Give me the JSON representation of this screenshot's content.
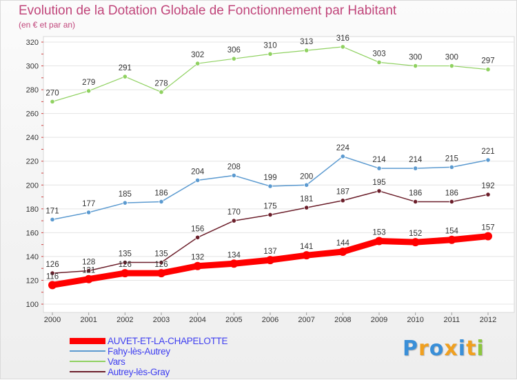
{
  "chart_data": {
    "type": "line",
    "title": "Evolution de la Dotation Globale de Fonctionnement par Habitant",
    "subtitle": "(en € et par an)",
    "xlabel": "",
    "ylabel": "",
    "x": [
      "2000",
      "2001",
      "2002",
      "2003",
      "2004",
      "2005",
      "2006",
      "2007",
      "2008",
      "2009",
      "2010",
      "2011",
      "2012"
    ],
    "ylim": [
      100,
      320
    ],
    "yticks": [
      100,
      120,
      140,
      160,
      180,
      200,
      220,
      240,
      260,
      280,
      300,
      320
    ],
    "legend_position": "bottom-left",
    "series": [
      {
        "name": "AUVET-ET-LA-CHAPELOTTE",
        "color": "#ff0000",
        "values": [
          116,
          121,
          126,
          126,
          132,
          134,
          137,
          141,
          144,
          153,
          152,
          154,
          157
        ]
      },
      {
        "name": "Fahy-lès-Autrey",
        "color": "#5b9ad0",
        "values": [
          171,
          177,
          185,
          186,
          204,
          208,
          199,
          200,
          224,
          214,
          214,
          215,
          221
        ]
      },
      {
        "name": "Vars",
        "color": "#8fd160",
        "values": [
          270,
          279,
          291,
          278,
          302,
          306,
          310,
          313,
          316,
          303,
          300,
          300,
          297
        ]
      },
      {
        "name": "Autrey-lès-Gray",
        "color": "#6b1e2a",
        "values": [
          126,
          128,
          135,
          135,
          156,
          170,
          175,
          181,
          187,
          195,
          186,
          186,
          192
        ]
      }
    ]
  },
  "branding": {
    "logo_text": "Proxiti",
    "colors": [
      "#3a8fd8",
      "#f0a020",
      "#3a8fd8",
      "#f0a020",
      "#3a8fd8",
      "#f0a020",
      "#8cc63f"
    ]
  }
}
